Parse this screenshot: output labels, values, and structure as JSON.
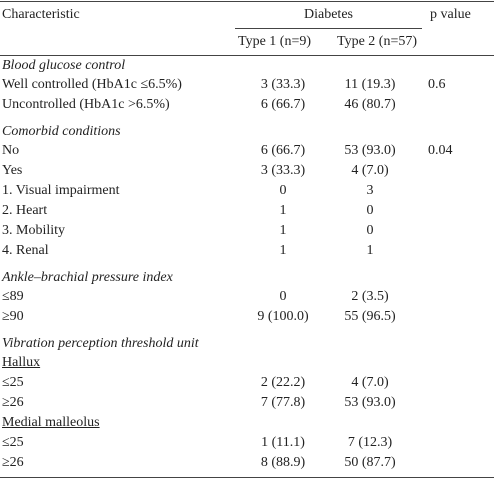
{
  "header": {
    "characteristic": "Characteristic",
    "group": "Diabetes",
    "p": "p value",
    "type1": "Type 1 (n=9)",
    "type2": "Type 2 (n=57)"
  },
  "sections": [
    {
      "title": "Blood glucose control",
      "rows": [
        [
          "Well controlled (HbA1c ≤6.5%)",
          "3 (33.3)",
          "11 (19.3)",
          "0.6"
        ],
        [
          "Uncontrolled (HbA1c >6.5%)",
          "6 (66.7)",
          "46 (80.7)"
        ]
      ]
    },
    {
      "title": "Comorbid conditions",
      "rows": [
        [
          "No",
          "6 (66.7)",
          "53 (93.0)",
          "0.04"
        ],
        [
          "Yes",
          "3 (33.3)",
          "4 (7.0)"
        ],
        [
          "1. Visual impairment",
          "0",
          "3"
        ],
        [
          "2. Heart",
          "1",
          "0"
        ],
        [
          "3. Mobility",
          "1",
          "0"
        ],
        [
          "4. Renal",
          "1",
          "1"
        ]
      ]
    },
    {
      "title": "Ankle–brachial pressure index",
      "rows": [
        [
          "≤89",
          "0",
          "2 (3.5)"
        ],
        [
          "≥90",
          "9 (100.0)",
          "55 (96.5)"
        ]
      ]
    },
    {
      "title": "Vibration perception threshold unit",
      "groups": [
        {
          "title": "Hallux",
          "rows": [
            [
              "≤25",
              "2 (22.2)",
              "4 (7.0)"
            ],
            [
              "≥26",
              "7 (77.8)",
              "53 (93.0)"
            ]
          ]
        },
        {
          "title": "Medial malleolus",
          "rows": [
            [
              "≤25",
              "1 (11.1)",
              "7 (12.3)"
            ],
            [
              "≥26",
              "8 (88.9)",
              "50 (87.7)"
            ]
          ]
        }
      ]
    }
  ]
}
